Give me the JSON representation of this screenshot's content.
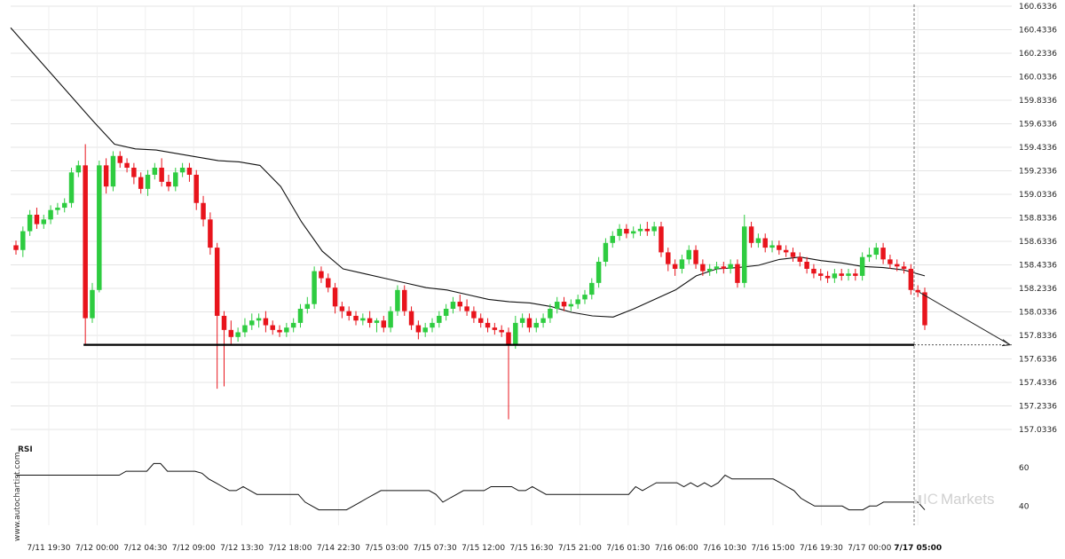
{
  "watermark": {
    "side": "www.autochartist.com",
    "brand_ic": "IC",
    "brand_rest": "Markets"
  },
  "colors": {
    "up": "#2ecc40",
    "down": "#e8141c",
    "line": "#111111",
    "grid": "#e4e4e4"
  },
  "chart_data": [
    {
      "type": "candlestick",
      "title": "",
      "yticks": [
        "160.6336",
        "160.4336",
        "160.2336",
        "160.0336",
        "159.8336",
        "159.6336",
        "159.4336",
        "159.2336",
        "159.0336",
        "158.8336",
        "158.6336",
        "158.4336",
        "158.2336",
        "158.0336",
        "157.8336",
        "157.6336",
        "157.4336",
        "157.2336",
        "157.0336"
      ],
      "ylim": [
        157.0336,
        160.6336
      ],
      "xticks": [
        "7/11 19:30",
        "7/12 00:00",
        "7/12 04:30",
        "7/12 09:00",
        "7/12 13:30",
        "7/12 18:00",
        "7/14 22:30",
        "7/15 03:00",
        "7/15 07:30",
        "7/15 12:00",
        "7/15 16:30",
        "7/15 21:00",
        "7/16 01:30",
        "7/16 06:00",
        "7/16 10:30",
        "7/16 15:00",
        "7/16 19:30",
        "7/17 00:00",
        "7/17 05:00"
      ],
      "support_level": 157.7536,
      "forecast_end": 157.7536,
      "moving_average": [
        160.45,
        160.25,
        160.05,
        159.85,
        159.65,
        159.46,
        159.42,
        159.41,
        159.38,
        159.35,
        159.32,
        159.31,
        159.28,
        159.1,
        158.8,
        158.55,
        158.4,
        158.36,
        158.32,
        158.28,
        158.24,
        158.22,
        158.18,
        158.14,
        158.12,
        158.11,
        158.08,
        158.03,
        158.0,
        157.99,
        158.06,
        158.14,
        158.22,
        158.34,
        158.4,
        158.41,
        158.43,
        158.48,
        158.5,
        158.47,
        158.45,
        158.42,
        158.41,
        158.39,
        158.34
      ],
      "candles": [
        [
          158.6,
          158.56,
          158.64,
          158.52
        ],
        [
          158.56,
          158.72,
          158.76,
          158.5
        ],
        [
          158.72,
          158.86,
          158.9,
          158.68
        ],
        [
          158.86,
          158.78,
          158.92,
          158.74
        ],
        [
          158.78,
          158.82,
          158.86,
          158.74
        ],
        [
          158.82,
          158.9,
          158.94,
          158.78
        ],
        [
          158.9,
          158.92,
          158.96,
          158.86
        ],
        [
          158.92,
          158.96,
          159.0,
          158.88
        ],
        [
          158.96,
          159.22,
          159.26,
          158.92
        ],
        [
          159.22,
          159.28,
          159.32,
          159.18
        ],
        [
          159.28,
          157.98,
          159.46,
          157.76
        ],
        [
          157.98,
          158.22,
          158.28,
          157.94
        ],
        [
          158.22,
          159.28,
          159.32,
          158.2
        ],
        [
          159.28,
          159.1,
          159.34,
          159.04
        ],
        [
          159.1,
          159.36,
          159.4,
          159.06
        ],
        [
          159.36,
          159.3,
          159.4,
          159.26
        ],
        [
          159.3,
          159.26,
          159.34,
          159.22
        ],
        [
          159.26,
          159.18,
          159.3,
          159.12
        ],
        [
          159.18,
          159.08,
          159.22,
          159.04
        ],
        [
          159.08,
          159.2,
          159.24,
          159.02
        ],
        [
          159.2,
          159.26,
          159.3,
          159.16
        ],
        [
          159.26,
          159.14,
          159.34,
          159.1
        ],
        [
          159.14,
          159.1,
          159.2,
          159.06
        ],
        [
          159.1,
          159.22,
          159.26,
          159.06
        ],
        [
          159.22,
          159.26,
          159.3,
          159.18
        ],
        [
          159.26,
          159.2,
          159.3,
          159.14
        ],
        [
          159.2,
          158.96,
          159.24,
          158.9
        ],
        [
          158.96,
          158.82,
          159.02,
          158.76
        ],
        [
          158.82,
          158.58,
          158.88,
          158.52
        ],
        [
          158.58,
          158.0,
          158.62,
          157.38
        ],
        [
          158.0,
          157.88,
          158.04,
          157.4
        ],
        [
          157.88,
          157.82,
          157.96,
          157.76
        ],
        [
          157.82,
          157.86,
          157.9,
          157.78
        ],
        [
          157.86,
          157.92,
          157.98,
          157.82
        ],
        [
          157.92,
          157.96,
          158.02,
          157.88
        ],
        [
          157.96,
          157.98,
          158.02,
          157.9
        ],
        [
          157.98,
          157.92,
          158.04,
          157.86
        ],
        [
          157.92,
          157.88,
          157.96,
          157.84
        ],
        [
          157.88,
          157.86,
          157.92,
          157.82
        ],
        [
          157.86,
          157.9,
          157.94,
          157.82
        ],
        [
          157.9,
          157.94,
          157.98,
          157.86
        ],
        [
          157.94,
          158.06,
          158.1,
          157.9
        ],
        [
          158.06,
          158.1,
          158.16,
          158.02
        ],
        [
          158.1,
          158.38,
          158.42,
          158.06
        ],
        [
          158.38,
          158.32,
          158.42,
          158.28
        ],
        [
          158.32,
          158.24,
          158.36,
          158.2
        ],
        [
          158.24,
          158.08,
          158.28,
          158.02
        ],
        [
          158.08,
          158.04,
          158.12,
          157.98
        ],
        [
          158.04,
          158.0,
          158.08,
          157.96
        ],
        [
          158.0,
          157.96,
          158.04,
          157.92
        ],
        [
          157.96,
          157.98,
          158.02,
          157.92
        ],
        [
          157.98,
          157.94,
          158.04,
          157.9
        ],
        [
          157.94,
          157.96,
          157.98,
          157.86
        ],
        [
          157.96,
          157.9,
          158.0,
          157.86
        ],
        [
          157.9,
          158.04,
          158.08,
          157.86
        ],
        [
          158.04,
          158.22,
          158.26,
          158.0
        ],
        [
          158.22,
          158.04,
          158.26,
          158.0
        ],
        [
          158.04,
          157.92,
          158.08,
          157.88
        ],
        [
          157.92,
          157.86,
          157.96,
          157.8
        ],
        [
          157.86,
          157.9,
          157.94,
          157.82
        ],
        [
          157.9,
          157.94,
          157.98,
          157.86
        ],
        [
          157.94,
          158.0,
          158.04,
          157.9
        ],
        [
          158.0,
          158.06,
          158.1,
          157.96
        ],
        [
          158.06,
          158.12,
          158.16,
          158.02
        ],
        [
          158.12,
          158.08,
          158.18,
          158.04
        ],
        [
          158.08,
          158.04,
          158.14,
          158.0
        ],
        [
          158.04,
          157.98,
          158.08,
          157.94
        ],
        [
          157.98,
          157.94,
          158.02,
          157.9
        ],
        [
          157.94,
          157.9,
          157.98,
          157.86
        ],
        [
          157.9,
          157.88,
          157.94,
          157.84
        ],
        [
          157.88,
          157.86,
          157.92,
          157.82
        ],
        [
          157.86,
          157.76,
          157.9,
          157.12
        ],
        [
          157.76,
          157.94,
          158.0,
          157.72
        ],
        [
          157.94,
          157.98,
          158.02,
          157.9
        ],
        [
          157.98,
          157.9,
          158.02,
          157.86
        ],
        [
          157.9,
          157.94,
          157.98,
          157.86
        ],
        [
          157.94,
          157.98,
          158.02,
          157.9
        ],
        [
          157.98,
          158.06,
          158.1,
          157.94
        ],
        [
          158.06,
          158.12,
          158.16,
          158.02
        ],
        [
          158.12,
          158.08,
          158.16,
          158.04
        ],
        [
          158.08,
          158.1,
          158.14,
          158.04
        ],
        [
          158.1,
          158.14,
          158.18,
          158.06
        ],
        [
          158.14,
          158.18,
          158.22,
          158.1
        ],
        [
          158.18,
          158.28,
          158.32,
          158.14
        ],
        [
          158.28,
          158.46,
          158.5,
          158.24
        ],
        [
          158.46,
          158.62,
          158.66,
          158.42
        ],
        [
          158.62,
          158.68,
          158.72,
          158.58
        ],
        [
          158.68,
          158.74,
          158.78,
          158.64
        ],
        [
          158.74,
          158.7,
          158.78,
          158.66
        ],
        [
          158.7,
          158.72,
          158.76,
          158.66
        ],
        [
          158.72,
          158.74,
          158.78,
          158.68
        ],
        [
          158.74,
          158.72,
          158.8,
          158.68
        ],
        [
          158.72,
          158.76,
          158.8,
          158.68
        ],
        [
          158.76,
          158.54,
          158.8,
          158.5
        ],
        [
          158.54,
          158.44,
          158.58,
          158.38
        ],
        [
          158.44,
          158.4,
          158.48,
          158.34
        ],
        [
          158.4,
          158.48,
          158.52,
          158.36
        ],
        [
          158.48,
          158.56,
          158.6,
          158.44
        ],
        [
          158.56,
          158.44,
          158.6,
          158.4
        ],
        [
          158.44,
          158.38,
          158.48,
          158.34
        ],
        [
          158.38,
          158.4,
          158.44,
          158.34
        ],
        [
          158.4,
          158.42,
          158.46,
          158.36
        ],
        [
          158.42,
          158.4,
          158.46,
          158.36
        ],
        [
          158.4,
          158.44,
          158.48,
          158.36
        ],
        [
          158.44,
          158.28,
          158.48,
          158.24
        ],
        [
          158.28,
          158.76,
          158.86,
          158.24
        ],
        [
          158.76,
          158.62,
          158.8,
          158.58
        ],
        [
          158.62,
          158.66,
          158.7,
          158.58
        ],
        [
          158.66,
          158.58,
          158.7,
          158.54
        ],
        [
          158.58,
          158.6,
          158.64,
          158.54
        ],
        [
          158.6,
          158.56,
          158.64,
          158.52
        ],
        [
          158.56,
          158.54,
          158.6,
          158.5
        ],
        [
          158.54,
          158.5,
          158.58,
          158.46
        ],
        [
          158.5,
          158.46,
          158.54,
          158.42
        ],
        [
          158.46,
          158.4,
          158.5,
          158.36
        ],
        [
          158.4,
          158.36,
          158.44,
          158.32
        ],
        [
          158.36,
          158.34,
          158.4,
          158.3
        ],
        [
          158.34,
          158.32,
          158.38,
          158.28
        ],
        [
          158.32,
          158.36,
          158.4,
          158.28
        ],
        [
          158.36,
          158.34,
          158.4,
          158.3
        ],
        [
          158.34,
          158.36,
          158.4,
          158.3
        ],
        [
          158.36,
          158.34,
          158.4,
          158.3
        ],
        [
          158.34,
          158.5,
          158.54,
          158.3
        ],
        [
          158.5,
          158.52,
          158.58,
          158.46
        ],
        [
          158.52,
          158.58,
          158.62,
          158.48
        ],
        [
          158.58,
          158.48,
          158.62,
          158.44
        ],
        [
          158.48,
          158.44,
          158.52,
          158.4
        ],
        [
          158.44,
          158.42,
          158.48,
          158.38
        ],
        [
          158.42,
          158.4,
          158.46,
          158.36
        ],
        [
          158.4,
          158.22,
          158.44,
          158.18
        ],
        [
          158.22,
          158.2,
          158.26,
          158.16
        ],
        [
          158.2,
          157.92,
          158.24,
          157.88
        ]
      ]
    },
    {
      "type": "line",
      "title": "RSI",
      "yticks": [
        "60",
        "40"
      ],
      "ylim": [
        30,
        70
      ],
      "values": [
        56,
        56,
        56,
        56,
        56,
        56,
        56,
        56,
        56,
        56,
        56,
        56,
        56,
        56,
        56,
        56,
        58,
        58,
        58,
        58,
        62,
        62,
        58,
        58,
        58,
        58,
        58,
        57,
        54,
        52,
        50,
        48,
        48,
        50,
        48,
        46,
        46,
        46,
        46,
        46,
        46,
        46,
        42,
        40,
        38,
        38,
        38,
        38,
        38,
        40,
        42,
        44,
        46,
        48,
        48,
        48,
        48,
        48,
        48,
        48,
        48,
        46,
        42,
        44,
        46,
        48,
        48,
        48,
        48,
        50,
        50,
        50,
        50,
        48,
        48,
        50,
        48,
        46,
        46,
        46,
        46,
        46,
        46,
        46,
        46,
        46,
        46,
        46,
        46,
        46,
        50,
        48,
        50,
        52,
        52,
        52,
        52,
        50,
        52,
        50,
        52,
        50,
        52,
        56,
        54,
        54,
        54,
        54,
        54,
        54,
        54,
        52,
        50,
        48,
        44,
        42,
        40,
        40,
        40,
        40,
        40,
        38,
        38,
        38,
        40,
        40,
        42,
        42,
        42,
        42,
        42,
        42,
        38
      ]
    }
  ]
}
